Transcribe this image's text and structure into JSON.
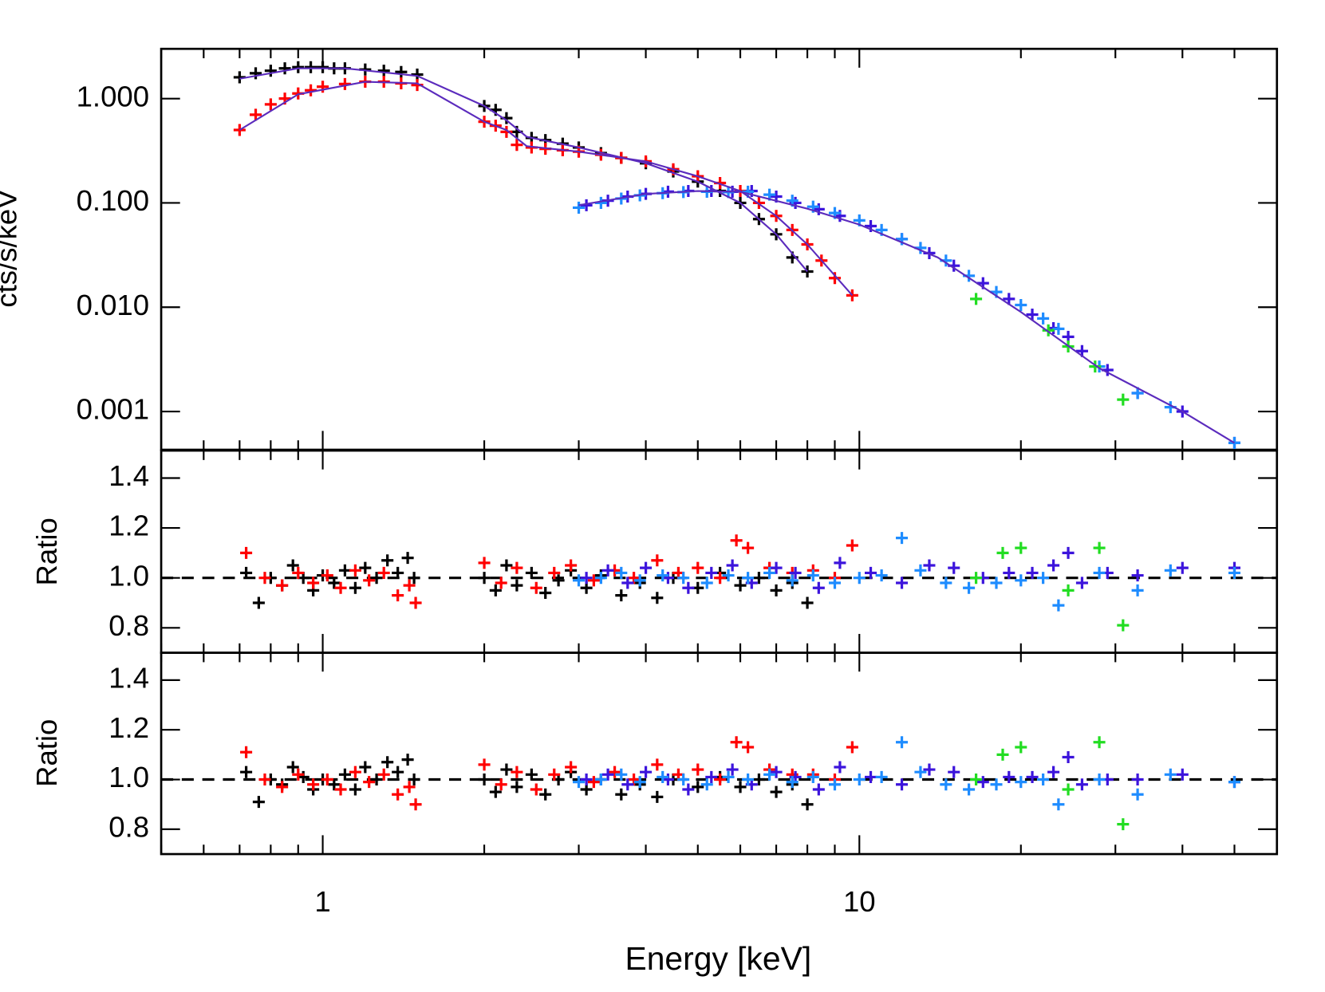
{
  "chart_data": [
    {
      "type": "scatter",
      "log_y": true,
      "ylabel": "cts/s/keV",
      "ylim": [
        0.00043,
        3
      ],
      "yticks": [
        {
          "value": 1,
          "label": "1.000"
        },
        {
          "value": 0.1,
          "label": "0.100"
        },
        {
          "value": 0.01,
          "label": "0.010"
        },
        {
          "value": 0.001,
          "label": "0.001"
        }
      ],
      "series": [
        {
          "color": "#000000",
          "x": [
            0.7,
            0.75,
            0.8,
            0.85,
            0.9,
            0.95,
            1.0,
            1.05,
            1.1,
            1.2,
            1.3,
            1.4,
            1.5,
            2.0,
            2.1,
            2.2,
            2.3,
            2.45,
            2.6,
            2.8,
            3.0,
            3.3,
            3.6,
            4.0,
            4.5,
            5.0,
            5.5,
            6.0,
            6.5,
            7.0,
            7.5,
            8.0
          ],
          "values": [
            1.6,
            1.75,
            1.85,
            1.95,
            2.0,
            2.0,
            2.0,
            1.95,
            1.95,
            1.9,
            1.85,
            1.8,
            1.7,
            0.85,
            0.78,
            0.65,
            0.48,
            0.42,
            0.4,
            0.37,
            0.34,
            0.3,
            0.27,
            0.24,
            0.2,
            0.16,
            0.13,
            0.1,
            0.07,
            0.05,
            0.03,
            0.022
          ]
        },
        {
          "color": "#ff0000",
          "x": [
            0.7,
            0.75,
            0.8,
            0.85,
            0.9,
            0.95,
            1.0,
            1.1,
            1.2,
            1.3,
            1.4,
            1.5,
            2.0,
            2.1,
            2.2,
            2.3,
            2.45,
            2.6,
            2.8,
            3.0,
            3.3,
            3.6,
            4.0,
            4.5,
            5.0,
            5.5,
            6.0,
            6.5,
            7.0,
            7.5,
            8.0,
            8.5,
            9.0,
            9.7
          ],
          "values": [
            0.5,
            0.7,
            0.88,
            1.0,
            1.12,
            1.2,
            1.3,
            1.38,
            1.45,
            1.45,
            1.4,
            1.35,
            0.6,
            0.55,
            0.48,
            0.36,
            0.34,
            0.33,
            0.32,
            0.31,
            0.29,
            0.27,
            0.25,
            0.21,
            0.18,
            0.155,
            0.13,
            0.1,
            0.075,
            0.055,
            0.04,
            0.028,
            0.019,
            0.013
          ]
        },
        {
          "color": "#3c14dc",
          "x": [
            3.1,
            3.4,
            3.7,
            4.0,
            4.4,
            4.8,
            5.3,
            5.8,
            6.3,
            7.0,
            7.6,
            8.4,
            9.2,
            10.5,
            12,
            13.5,
            15,
            17,
            19,
            21,
            23,
            24.5,
            26,
            29,
            33,
            40,
            50
          ],
          "values": [
            0.095,
            0.105,
            0.115,
            0.122,
            0.128,
            0.13,
            0.13,
            0.128,
            0.13,
            0.115,
            0.1,
            0.087,
            0.075,
            0.06,
            0.045,
            0.033,
            0.025,
            0.017,
            0.012,
            0.0085,
            0.0063,
            0.0052,
            0.0038,
            0.0025,
            0.0015,
            0.001,
            0.0005
          ]
        },
        {
          "color": "#1e8cff",
          "x": [
            3.0,
            3.3,
            3.6,
            3.9,
            4.3,
            4.7,
            5.2,
            5.7,
            6.2,
            6.8,
            7.5,
            8.2,
            9.0,
            10,
            11,
            12,
            13,
            14.5,
            16,
            18,
            20,
            22,
            23.5,
            28,
            33,
            38,
            50
          ],
          "values": [
            0.09,
            0.1,
            0.11,
            0.118,
            0.124,
            0.127,
            0.128,
            0.127,
            0.128,
            0.12,
            0.105,
            0.092,
            0.08,
            0.068,
            0.055,
            0.045,
            0.037,
            0.028,
            0.02,
            0.014,
            0.0105,
            0.0078,
            0.0062,
            0.0027,
            0.0015,
            0.0011,
            0.0005
          ]
        },
        {
          "color": "#22dd22",
          "x": [
            16.5,
            22.5,
            24.5,
            27.5,
            31
          ],
          "values": [
            0.012,
            0.006,
            0.0042,
            0.0027,
            0.0013
          ]
        }
      ],
      "models": [
        {
          "color": "#5b2bbd",
          "x": [
            0.7,
            0.9,
            1.1,
            1.5,
            2.0,
            2.2,
            2.4,
            3,
            4,
            5,
            6,
            7,
            8
          ],
          "values": [
            1.55,
            1.95,
            1.95,
            1.65,
            0.85,
            0.62,
            0.43,
            0.34,
            0.24,
            0.16,
            0.1,
            0.05,
            0.022
          ]
        },
        {
          "color": "#5b2bbd",
          "x": [
            0.7,
            0.9,
            1.2,
            1.5,
            2.0,
            2.2,
            2.4,
            3,
            4,
            5,
            6,
            7,
            8,
            9.7
          ],
          "values": [
            0.5,
            1.1,
            1.45,
            1.4,
            0.6,
            0.5,
            0.35,
            0.31,
            0.25,
            0.18,
            0.13,
            0.075,
            0.04,
            0.013
          ]
        },
        {
          "color": "#5b2bbd",
          "x": [
            3,
            4,
            5,
            6,
            8,
            10,
            14,
            20,
            28,
            40,
            50
          ],
          "values": [
            0.095,
            0.122,
            0.13,
            0.128,
            0.088,
            0.062,
            0.03,
            0.009,
            0.0026,
            0.001,
            0.0005
          ]
        }
      ]
    },
    {
      "type": "scatter",
      "ylabel": "Ratio",
      "ylim": [
        0.7,
        1.51
      ],
      "ref_line": 1,
      "yticks": [
        0.8,
        {
          "value": 1,
          "label": "1.0"
        },
        1.2,
        1.4
      ],
      "series": [
        {
          "color": "#000000",
          "x": [
            0.72,
            0.76,
            0.8,
            0.84,
            0.88,
            0.92,
            0.96,
            1.0,
            1.05,
            1.1,
            1.15,
            1.2,
            1.26,
            1.32,
            1.38,
            1.44,
            1.48,
            2.0,
            2.1,
            2.2,
            2.3,
            2.45,
            2.6,
            2.75,
            2.9,
            3.1,
            3.3,
            3.6,
            3.9,
            4.2,
            4.5,
            5.0,
            5.5,
            6.0,
            6.5,
            7.0,
            7.5,
            8.0
          ],
          "values": [
            1.02,
            0.9,
            1.0,
            0.97,
            1.05,
            1.0,
            0.95,
            1.01,
            0.98,
            1.03,
            0.96,
            1.04,
            1.0,
            1.07,
            1.02,
            1.08,
            1.0,
            1.0,
            0.95,
            1.05,
            0.97,
            1.02,
            0.94,
            0.99,
            1.03,
            0.96,
            1.01,
            0.93,
            0.98,
            0.92,
            1.0,
            0.96,
            1.02,
            0.97,
            1.0,
            0.95,
            0.98,
            0.9
          ]
        },
        {
          "color": "#ff0000",
          "x": [
            0.72,
            0.78,
            0.84,
            0.9,
            0.96,
            1.02,
            1.08,
            1.15,
            1.22,
            1.3,
            1.38,
            1.45,
            1.49,
            2.0,
            2.15,
            2.3,
            2.5,
            2.7,
            2.9,
            3.2,
            3.5,
            3.8,
            4.2,
            4.6,
            5.0,
            5.5,
            5.9,
            6.2,
            6.8,
            7.5,
            8.2,
            9.0,
            9.7
          ],
          "values": [
            1.1,
            1.0,
            0.97,
            1.02,
            0.98,
            1.01,
            0.96,
            1.03,
            0.99,
            1.02,
            0.93,
            0.97,
            0.9,
            1.06,
            0.98,
            1.04,
            0.96,
            1.02,
            1.05,
            0.99,
            1.03,
            1.0,
            1.07,
            1.02,
            1.04,
            1.0,
            1.15,
            1.12,
            1.04,
            1.02,
            1.03,
            1.0,
            1.13
          ]
        },
        {
          "color": "#3c14dc",
          "x": [
            3.1,
            3.4,
            3.7,
            4.0,
            4.4,
            4.8,
            5.3,
            5.8,
            6.3,
            7.0,
            7.6,
            8.4,
            9.2,
            10.5,
            12,
            13.5,
            15,
            17,
            19,
            21,
            23,
            24.5,
            26,
            29,
            33,
            40,
            50
          ],
          "values": [
            1.0,
            1.03,
            0.98,
            1.04,
            1.0,
            0.96,
            1.02,
            1.05,
            0.98,
            1.04,
            1.02,
            0.96,
            1.06,
            1.02,
            0.98,
            1.05,
            1.04,
            1.0,
            1.02,
            1.02,
            1.05,
            1.1,
            0.98,
            1.02,
            1.01,
            1.04,
            1.04
          ]
        },
        {
          "color": "#1e8cff",
          "x": [
            3.0,
            3.3,
            3.6,
            3.9,
            4.3,
            4.7,
            5.2,
            5.7,
            6.2,
            6.8,
            7.5,
            8.2,
            9.0,
            10,
            11,
            12,
            13,
            14.5,
            16,
            18,
            20,
            22,
            23.5,
            28,
            33,
            38,
            50
          ],
          "values": [
            0.99,
            1.0,
            1.02,
            0.99,
            1.01,
            1.0,
            0.98,
            1.01,
            1.0,
            1.02,
            0.99,
            1.01,
            0.98,
            1.0,
            1.01,
            1.16,
            1.03,
            0.98,
            0.96,
            0.98,
            0.99,
            1.0,
            0.89,
            1.02,
            0.95,
            1.03,
            1.02
          ]
        },
        {
          "color": "#22dd22",
          "x": [
            16.5,
            18.5,
            20,
            24.5,
            28,
            31
          ],
          "values": [
            1.0,
            1.1,
            1.12,
            0.95,
            1.12,
            0.81
          ]
        }
      ]
    },
    {
      "type": "scatter",
      "ylabel": "Ratio",
      "ylim": [
        0.7,
        1.51
      ],
      "ref_line": 1,
      "yticks": [
        0.8,
        {
          "value": 1,
          "label": "1.0"
        },
        1.2,
        1.4
      ],
      "xlabel": "Energy [keV]",
      "log_x": true,
      "xlim": [
        0.5,
        60
      ],
      "xticks": [
        1,
        10
      ],
      "xminor": [
        0.5,
        0.6,
        0.7,
        0.8,
        0.9,
        2,
        3,
        4,
        5,
        6,
        7,
        8,
        9,
        20,
        30,
        40,
        50,
        60
      ],
      "series": [
        {
          "color": "#000000",
          "x": [
            0.72,
            0.76,
            0.8,
            0.84,
            0.88,
            0.92,
            0.96,
            1.0,
            1.05,
            1.1,
            1.15,
            1.2,
            1.26,
            1.32,
            1.38,
            1.44,
            1.48,
            2.0,
            2.1,
            2.2,
            2.3,
            2.45,
            2.6,
            2.75,
            2.9,
            3.1,
            3.3,
            3.6,
            3.9,
            4.2,
            4.5,
            5.0,
            5.5,
            6.0,
            6.5,
            7.0,
            7.5,
            8.0
          ],
          "values": [
            1.03,
            0.91,
            1.0,
            0.98,
            1.05,
            1.01,
            0.96,
            1.0,
            0.98,
            1.02,
            0.96,
            1.05,
            1.0,
            1.07,
            1.03,
            1.08,
            1.0,
            1.0,
            0.95,
            1.04,
            0.97,
            1.02,
            0.94,
            1.0,
            1.03,
            0.96,
            1.0,
            0.94,
            0.98,
            0.93,
            1.0,
            0.97,
            1.01,
            0.97,
            1.0,
            0.95,
            0.98,
            0.9
          ]
        },
        {
          "color": "#ff0000",
          "x": [
            0.72,
            0.78,
            0.84,
            0.9,
            0.96,
            1.02,
            1.08,
            1.15,
            1.22,
            1.3,
            1.38,
            1.45,
            1.49,
            2.0,
            2.15,
            2.3,
            2.5,
            2.7,
            2.9,
            3.2,
            3.5,
            3.8,
            4.2,
            4.6,
            5.0,
            5.5,
            5.9,
            6.2,
            6.8,
            7.5,
            8.2,
            9.0,
            9.7
          ],
          "values": [
            1.11,
            1.0,
            0.97,
            1.02,
            0.98,
            1.0,
            0.96,
            1.03,
            0.99,
            1.02,
            0.94,
            0.97,
            0.9,
            1.06,
            0.98,
            1.03,
            0.96,
            1.02,
            1.05,
            0.99,
            1.03,
            1.0,
            1.06,
            1.02,
            1.04,
            1.0,
            1.15,
            1.13,
            1.04,
            1.02,
            1.02,
            1.0,
            1.13
          ]
        },
        {
          "color": "#3c14dc",
          "x": [
            3.1,
            3.4,
            3.7,
            4.0,
            4.4,
            4.8,
            5.3,
            5.8,
            6.3,
            7.0,
            7.6,
            8.4,
            9.2,
            10.5,
            12,
            13.5,
            15,
            17,
            19,
            21,
            23,
            24.5,
            26,
            29,
            33,
            40,
            50
          ],
          "values": [
            1.0,
            1.02,
            0.98,
            1.03,
            1.0,
            0.96,
            1.01,
            1.04,
            0.98,
            1.03,
            1.01,
            0.96,
            1.05,
            1.01,
            0.98,
            1.04,
            1.03,
            0.99,
            1.01,
            1.01,
            1.03,
            1.09,
            0.98,
            1.0,
            1.0,
            1.02,
            0.99
          ]
        },
        {
          "color": "#1e8cff",
          "x": [
            3.0,
            3.3,
            3.6,
            3.9,
            4.3,
            4.7,
            5.2,
            5.7,
            6.2,
            6.8,
            7.5,
            8.2,
            9.0,
            10,
            11,
            12,
            13,
            14.5,
            16,
            18,
            20,
            22,
            23.5,
            28,
            33,
            38,
            50
          ],
          "values": [
            0.99,
            1.0,
            1.02,
            0.99,
            1.01,
            1.0,
            0.98,
            1.01,
            1.0,
            1.02,
            0.99,
            1.01,
            0.98,
            1.0,
            1.01,
            1.15,
            1.03,
            0.98,
            0.96,
            0.98,
            0.99,
            1.0,
            0.9,
            1.0,
            0.94,
            1.02,
            0.99
          ]
        },
        {
          "color": "#22dd22",
          "x": [
            16.5,
            18.5,
            20,
            24.5,
            28,
            31
          ],
          "values": [
            1.0,
            1.1,
            1.13,
            0.96,
            1.15,
            0.82
          ]
        }
      ]
    }
  ]
}
